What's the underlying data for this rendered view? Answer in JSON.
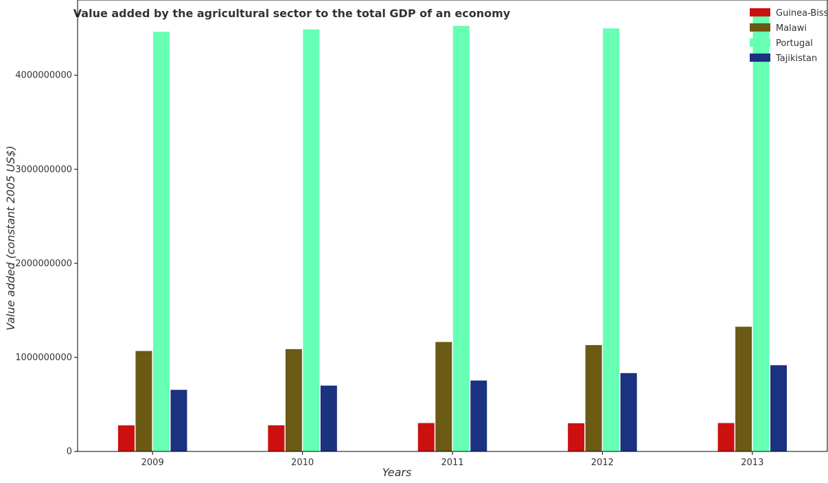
{
  "chart_data": {
    "type": "bar",
    "title": "Value added by the agricultural sector to the total GDP of an economy",
    "xlabel": "Years",
    "ylabel": "Value added (constant 2005 US$)",
    "categories": [
      "2009",
      "2010",
      "2011",
      "2012",
      "2013"
    ],
    "ylim": [
      0,
      4800000000
    ],
    "yticks": [
      0,
      1000000000,
      2000000000,
      3000000000,
      4000000000
    ],
    "ytick_labels": [
      "0",
      "1000000000",
      "2000000000",
      "3000000000",
      "4000000000"
    ],
    "legend_position": "top-right",
    "grid": false,
    "series": [
      {
        "name": "Guinea-Bissau",
        "color": "#cc1010",
        "values": [
          277000000,
          278000000,
          302000000,
          300000000,
          302000000
        ]
      },
      {
        "name": "Malawi",
        "color": "#6b5a14",
        "values": [
          1068000000,
          1088000000,
          1164000000,
          1131000000,
          1326000000
        ]
      },
      {
        "name": "Portugal",
        "color": "#66ffb3",
        "values": [
          4462000000,
          4488000000,
          4525000000,
          4498000000,
          4627000000
        ]
      },
      {
        "name": "Tajikistan",
        "color": "#1a3280",
        "values": [
          655000000,
          700000000,
          754000000,
          833000000,
          917000000
        ]
      }
    ]
  }
}
